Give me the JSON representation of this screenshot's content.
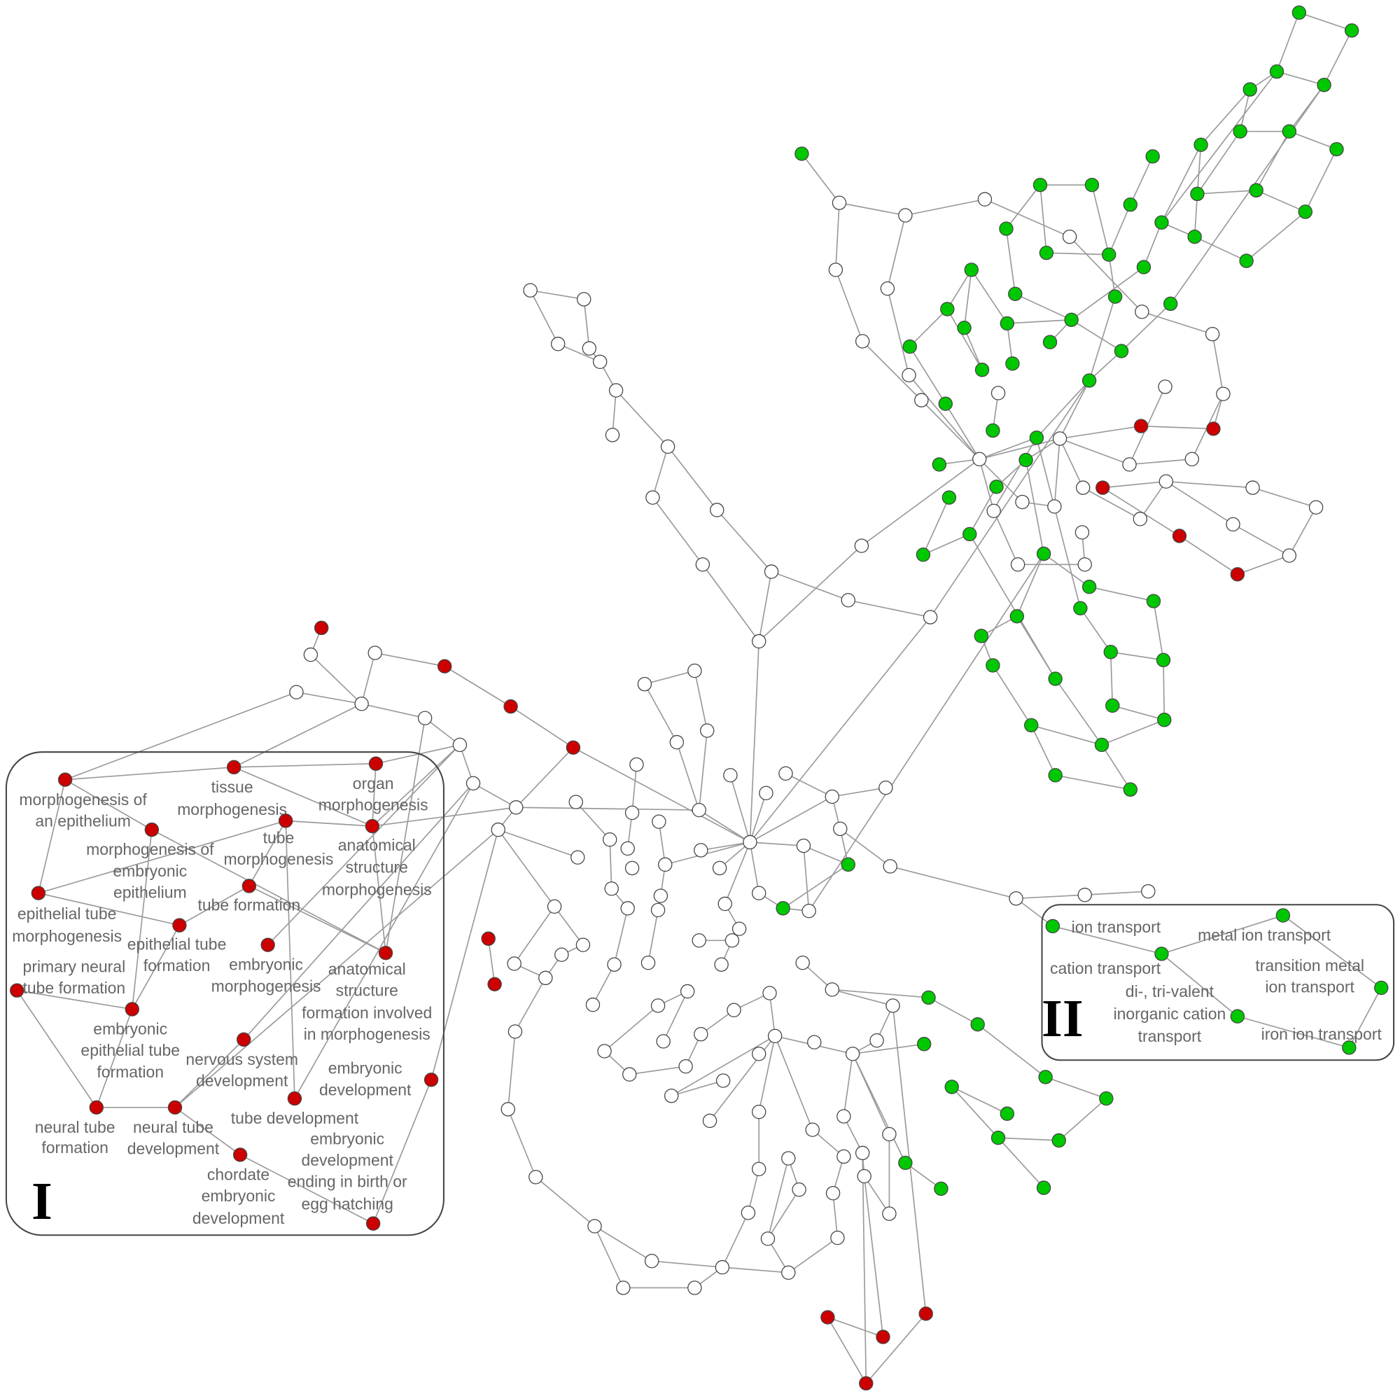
{
  "colors": {
    "red": "#cc0000",
    "green": "#00c800",
    "white": "#ffffff",
    "edge": "#9a9a9a",
    "label": "#666666"
  },
  "cluster_I": {
    "marker": "I",
    "node_color": "red",
    "nodes": [
      {
        "id": "a",
        "lines": [
          "morphogenesis of",
          "an epithelium"
        ]
      },
      {
        "id": "b",
        "lines": [
          "tissue",
          "morphogenesis"
        ]
      },
      {
        "id": "c",
        "lines": [
          "organ",
          "morphogenesis"
        ]
      },
      {
        "id": "d",
        "lines": [
          "morphogenesis of",
          "embryonic",
          "epithelium"
        ]
      },
      {
        "id": "e",
        "lines": [
          "tube",
          "morphogenesis"
        ]
      },
      {
        "id": "f",
        "lines": [
          "anatomical",
          "structure",
          "morphogenesis"
        ]
      },
      {
        "id": "g",
        "lines": [
          "epithelial tube",
          "morphogenesis"
        ]
      },
      {
        "id": "h",
        "lines": [
          "tube formation"
        ]
      },
      {
        "id": "i",
        "lines": [
          "epithelial tube",
          "formation"
        ]
      },
      {
        "id": "j",
        "lines": [
          "embryonic",
          "morphogenesis"
        ]
      },
      {
        "id": "k",
        "lines": [
          "anatomical",
          "structure",
          "formation involved",
          "in morphogenesis"
        ]
      },
      {
        "id": "l",
        "lines": [
          "primary neural",
          "tube formation"
        ]
      },
      {
        "id": "m",
        "lines": [
          "embryonic",
          "epithelial tube",
          "formation"
        ]
      },
      {
        "id": "n",
        "lines": [
          "nervous system",
          "development"
        ]
      },
      {
        "id": "o",
        "lines": [
          "embryonic",
          "development"
        ]
      },
      {
        "id": "p",
        "lines": [
          "tube development"
        ]
      },
      {
        "id": "q",
        "lines": [
          "neural tube",
          "formation"
        ]
      },
      {
        "id": "r",
        "lines": [
          "neural tube",
          "development"
        ]
      },
      {
        "id": "s",
        "lines": [
          "chordate",
          "embryonic",
          "development"
        ]
      },
      {
        "id": "t",
        "lines": [
          "embryonic",
          "development",
          "ending in birth or",
          "egg hatching"
        ]
      }
    ]
  },
  "cluster_II": {
    "marker": "II",
    "node_color": "green",
    "nodes": [
      {
        "id": "u",
        "lines": [
          "ion transport"
        ]
      },
      {
        "id": "v",
        "lines": [
          "cation transport"
        ]
      },
      {
        "id": "w",
        "lines": [
          "metal ion transport"
        ]
      },
      {
        "id": "x",
        "lines": [
          "transition metal",
          "ion transport"
        ]
      },
      {
        "id": "y",
        "lines": [
          "di-, tri-valent",
          "inorganic cation",
          "transport"
        ]
      },
      {
        "id": "z",
        "lines": [
          "iron ion transport"
        ]
      }
    ]
  }
}
